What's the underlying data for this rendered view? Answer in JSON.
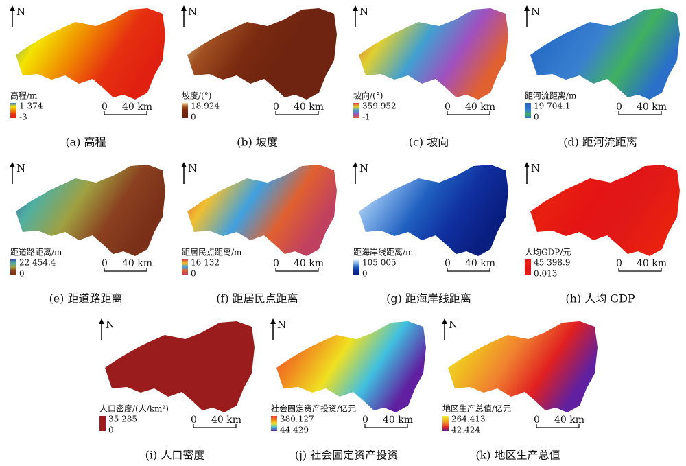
{
  "panels": [
    {
      "north": "N",
      "legend_title": "高程/m",
      "legend_max": "1 374",
      "legend_min": "-3",
      "scale_zero": "0",
      "scale_label": "40 km",
      "caption": "(a) 高程"
    },
    {
      "north": "N",
      "legend_title": "坡度/(°)",
      "legend_max": "18.924",
      "legend_min": "0",
      "scale_zero": "0",
      "scale_label": "40 km",
      "caption": "(b) 坡度"
    },
    {
      "north": "N",
      "legend_title": "坡向/(°)",
      "legend_max": "359.952",
      "legend_min": "-1",
      "scale_zero": "0",
      "scale_label": "40 km",
      "caption": "(c) 坡向"
    },
    {
      "north": "N",
      "legend_title": "距河流距离/m",
      "legend_max": "19 704.1",
      "legend_min": "0",
      "scale_zero": "0",
      "scale_label": "40 km",
      "caption": "(d) 距河流距离"
    },
    {
      "north": "N",
      "legend_title": "距道路距离/m",
      "legend_max": "22 454.4",
      "legend_min": "0",
      "scale_zero": "0",
      "scale_label": "40 km",
      "caption": "(e) 距道路距离"
    },
    {
      "north": "N",
      "legend_title": "距居民点距离/m",
      "legend_max": "16 132",
      "legend_min": "0",
      "scale_zero": "0",
      "scale_label": "40 km",
      "caption": "(f) 距居民点距离"
    },
    {
      "north": "N",
      "legend_title": "距海岸线距离/m",
      "legend_max": "105 005",
      "legend_min": "0",
      "scale_zero": "0",
      "scale_label": "40 km",
      "caption": "(g) 距海岸线距离"
    },
    {
      "north": "N",
      "legend_title": "人均GDP/元",
      "legend_max": "45 398.9",
      "legend_min": "0.013",
      "scale_zero": "0",
      "scale_label": "40 km",
      "caption": "(h) 人均 GDP"
    },
    {
      "north": "N",
      "legend_title": "人口密度/(人/km²)",
      "legend_max": "35 285",
      "legend_min": "0",
      "scale_zero": "0",
      "scale_label": "40 km",
      "caption": "(i) 人口密度"
    },
    {
      "north": "N",
      "legend_title": "社会固定资产投资/亿元",
      "legend_max": "380.127",
      "legend_min": "44.429",
      "scale_zero": "0",
      "scale_label": "40 km",
      "caption": "(j) 社会固定资产投资"
    },
    {
      "north": "N",
      "legend_title": "地区生产总值/亿元",
      "legend_max": "264.413",
      "legend_min": "42.424",
      "scale_zero": "0",
      "scale_label": "40 km",
      "caption": "(k) 地区生产总值"
    }
  ]
}
